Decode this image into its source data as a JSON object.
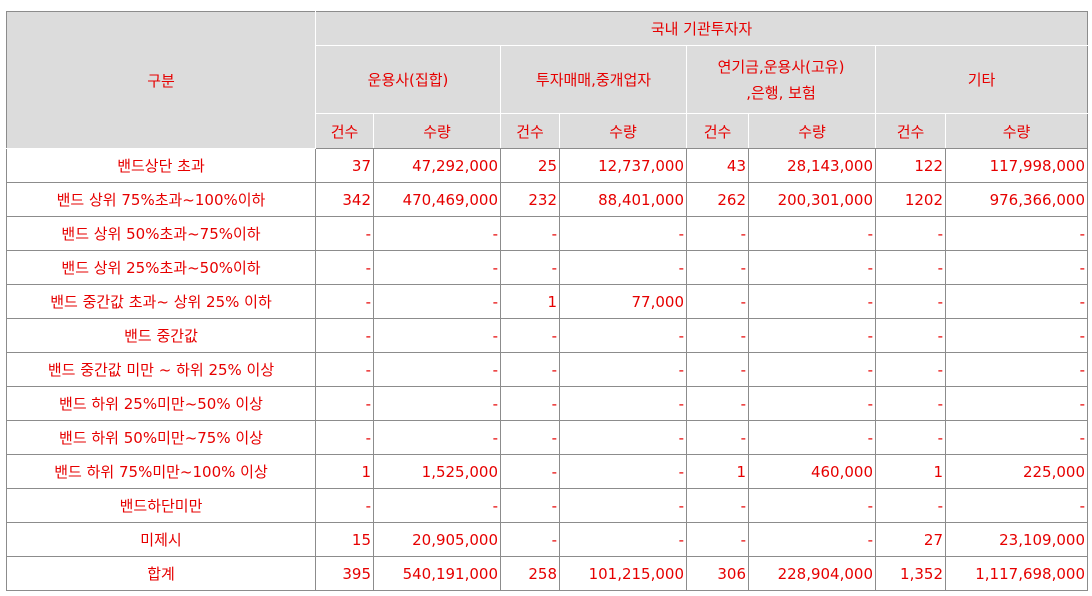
{
  "header": {
    "category_label": "구분",
    "group_label": "국내 기관투자자",
    "subgroups": [
      {
        "line1": "운용사(집합)",
        "line2": ""
      },
      {
        "line1": "투자매매,중개업자",
        "line2": ""
      },
      {
        "line1": "연기금,운용사(고유)",
        "line2": ",은행, 보험"
      },
      {
        "line1": "기타",
        "line2": ""
      }
    ],
    "count_label": "건수",
    "qty_label": "수량"
  },
  "rows": [
    {
      "label": "밴드상단 초과",
      "cells": [
        "37",
        "47,292,000",
        "25",
        "12,737,000",
        "43",
        "28,143,000",
        "122",
        "117,998,000"
      ]
    },
    {
      "label": "밴드 상위 75%초과~100%이하",
      "cells": [
        "342",
        "470,469,000",
        "232",
        "88,401,000",
        "262",
        "200,301,000",
        "1202",
        "976,366,000"
      ]
    },
    {
      "label": "밴드 상위 50%초과~75%이하",
      "cells": [
        "-",
        "-",
        "-",
        "-",
        "-",
        "-",
        "-",
        "-"
      ]
    },
    {
      "label": "밴드 상위 25%초과~50%이하",
      "cells": [
        "-",
        "-",
        "-",
        "-",
        "-",
        "-",
        "-",
        "-"
      ]
    },
    {
      "label": "밴드 중간값 초과~ 상위 25% 이하",
      "cells": [
        "-",
        "-",
        "1",
        "77,000",
        "-",
        "-",
        "-",
        "-"
      ]
    },
    {
      "label": "밴드 중간값",
      "cells": [
        "-",
        "-",
        "-",
        "-",
        "-",
        "-",
        "-",
        "-"
      ]
    },
    {
      "label": "밴드 중간값 미만 ~ 하위 25% 이상",
      "cells": [
        "-",
        "-",
        "-",
        "-",
        "-",
        "-",
        "-",
        "-"
      ]
    },
    {
      "label": "밴드 하위 25%미만~50% 이상",
      "cells": [
        "-",
        "-",
        "-",
        "-",
        "-",
        "-",
        "-",
        "-"
      ]
    },
    {
      "label": "밴드 하위 50%미만~75% 이상",
      "cells": [
        "-",
        "-",
        "-",
        "-",
        "-",
        "-",
        "-",
        "-"
      ]
    },
    {
      "label": "밴드 하위 75%미만~100% 이상",
      "cells": [
        "1",
        "1,525,000",
        "-",
        "-",
        "1",
        "460,000",
        "1",
        "225,000"
      ]
    },
    {
      "label": "밴드하단미만",
      "cells": [
        "-",
        "-",
        "-",
        "-",
        "-",
        "-",
        "-",
        "-"
      ]
    },
    {
      "label": "미제시",
      "cells": [
        "15",
        "20,905,000",
        "-",
        "-",
        "-",
        "-",
        "27",
        "23,109,000"
      ]
    },
    {
      "label": "합계",
      "cells": [
        "395",
        "540,191,000",
        "258",
        "101,215,000",
        "306",
        "228,904,000",
        "1,352",
        "1,117,698,000"
      ]
    }
  ],
  "colors": {
    "text": "#e60000",
    "header_bg": "#dcdcdc",
    "border": "#8c8c8c"
  }
}
